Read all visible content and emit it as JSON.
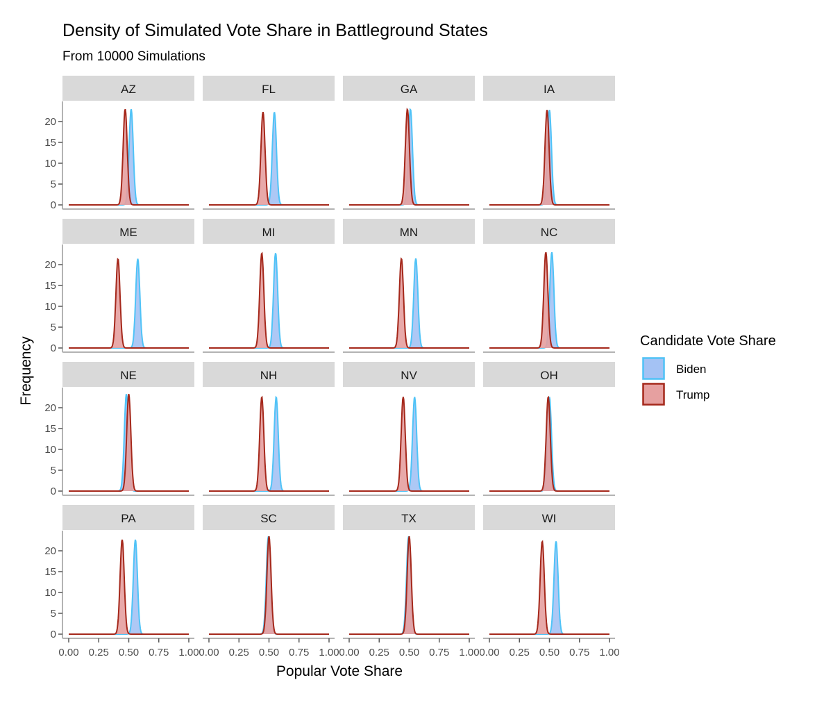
{
  "chart_data": {
    "type": "area",
    "title": "Density of Simulated Vote Share in Battleground States",
    "subtitle": "From 10000 Simulations",
    "xlabel": "Popular Vote Share",
    "ylabel": "Frequency",
    "xlim": [
      0,
      1
    ],
    "ylim": [
      0,
      23.5
    ],
    "x_ticks": [
      "0.00",
      "0.25",
      "0.50",
      "0.75",
      "1.00"
    ],
    "y_ticks": [
      "0",
      "5",
      "10",
      "15",
      "20"
    ],
    "legend": {
      "title": "Candidate Vote Share",
      "position": "right",
      "entries": [
        {
          "name": "Biden",
          "fill": "#a4c2f4",
          "stroke": "#4fc3f7"
        },
        {
          "name": "Trump",
          "fill": "#e6a0a0",
          "stroke": "#a5281b"
        }
      ]
    },
    "panels": [
      {
        "state": "AZ",
        "biden": {
          "mean": 0.52,
          "peak": 23
        },
        "trump": {
          "mean": 0.47,
          "peak": 23
        }
      },
      {
        "state": "FL",
        "biden": {
          "mean": 0.545,
          "peak": 22.3
        },
        "trump": {
          "mean": 0.45,
          "peak": 22.3
        }
      },
      {
        "state": "GA",
        "biden": {
          "mean": 0.51,
          "peak": 23
        },
        "trump": {
          "mean": 0.485,
          "peak": 23
        }
      },
      {
        "state": "IA",
        "biden": {
          "mean": 0.5,
          "peak": 22.8
        },
        "trump": {
          "mean": 0.48,
          "peak": 22.8
        }
      },
      {
        "state": "ME",
        "biden": {
          "mean": 0.575,
          "peak": 21.4
        },
        "trump": {
          "mean": 0.41,
          "peak": 21.4
        }
      },
      {
        "state": "MI",
        "biden": {
          "mean": 0.555,
          "peak": 22.8
        },
        "trump": {
          "mean": 0.44,
          "peak": 22.8
        }
      },
      {
        "state": "MN",
        "biden": {
          "mean": 0.555,
          "peak": 21.5
        },
        "trump": {
          "mean": 0.435,
          "peak": 21.5
        }
      },
      {
        "state": "NC",
        "biden": {
          "mean": 0.52,
          "peak": 23
        },
        "trump": {
          "mean": 0.47,
          "peak": 23
        }
      },
      {
        "state": "NE",
        "biden": {
          "mean": 0.48,
          "peak": 23.3
        },
        "trump": {
          "mean": 0.5,
          "peak": 23.3
        }
      },
      {
        "state": "NH",
        "biden": {
          "mean": 0.56,
          "peak": 22.6
        },
        "trump": {
          "mean": 0.44,
          "peak": 22.6
        }
      },
      {
        "state": "NV",
        "biden": {
          "mean": 0.545,
          "peak": 22.6
        },
        "trump": {
          "mean": 0.45,
          "peak": 22.6
        }
      },
      {
        "state": "OH",
        "biden": {
          "mean": 0.5,
          "peak": 22.6
        },
        "trump": {
          "mean": 0.49,
          "peak": 22.6
        }
      },
      {
        "state": "PA",
        "biden": {
          "mean": 0.555,
          "peak": 22.7
        },
        "trump": {
          "mean": 0.445,
          "peak": 22.7
        }
      },
      {
        "state": "SC",
        "biden": {
          "mean": 0.495,
          "peak": 23.5
        },
        "trump": {
          "mean": 0.5,
          "peak": 23.5
        }
      },
      {
        "state": "TX",
        "biden": {
          "mean": 0.495,
          "peak": 23.5
        },
        "trump": {
          "mean": 0.5,
          "peak": 23.5
        }
      },
      {
        "state": "WI",
        "biden": {
          "mean": 0.555,
          "peak": 22.3
        },
        "trump": {
          "mean": 0.44,
          "peak": 22.3
        }
      }
    ]
  }
}
